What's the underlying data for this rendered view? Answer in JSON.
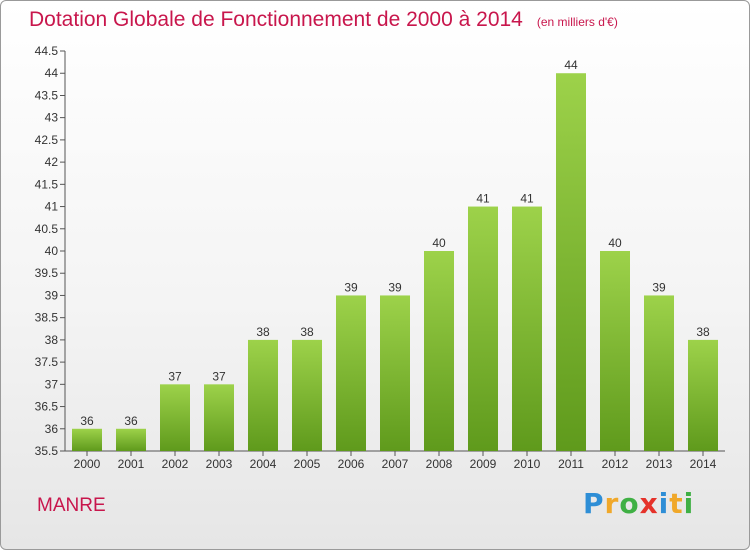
{
  "page": {
    "title": "Dotation Globale de Fonctionnement de 2000 à 2014",
    "subtitle": "(en milliers d'€)",
    "commune": "MANRE",
    "logo_text": "Proxiti"
  },
  "chart_data": {
    "type": "bar",
    "title": "Dotation Globale de Fonctionnement de 2000 à 2014",
    "subtitle": "(en milliers d'€)",
    "categories": [
      "2000",
      "2001",
      "2002",
      "2003",
      "2004",
      "2005",
      "2006",
      "2007",
      "2008",
      "2009",
      "2010",
      "2011",
      "2012",
      "2013",
      "2014"
    ],
    "values": [
      36,
      36,
      37,
      37,
      38,
      38,
      39,
      39,
      40,
      41,
      41,
      44,
      40,
      39,
      38
    ],
    "data_labels": [
      "36",
      "36",
      "37",
      "37",
      "38",
      "38",
      "39",
      "39",
      "40",
      "41",
      "41",
      "44",
      "40",
      "39",
      "38"
    ],
    "yticks": [
      "35.5",
      "36",
      "36.5",
      "37",
      "37.5",
      "38",
      "38.5",
      "39",
      "39.5",
      "40",
      "40.5",
      "41",
      "41.5",
      "42",
      "42.5",
      "43",
      "43.5",
      "44",
      "44.5"
    ],
    "ylim": [
      35.5,
      44.5
    ],
    "xlabel": "",
    "ylabel": "",
    "grid": false,
    "colors": {
      "bar_top": "#9dd24a",
      "bar_bottom": "#5f9a1c",
      "title": "#c8164c"
    }
  }
}
